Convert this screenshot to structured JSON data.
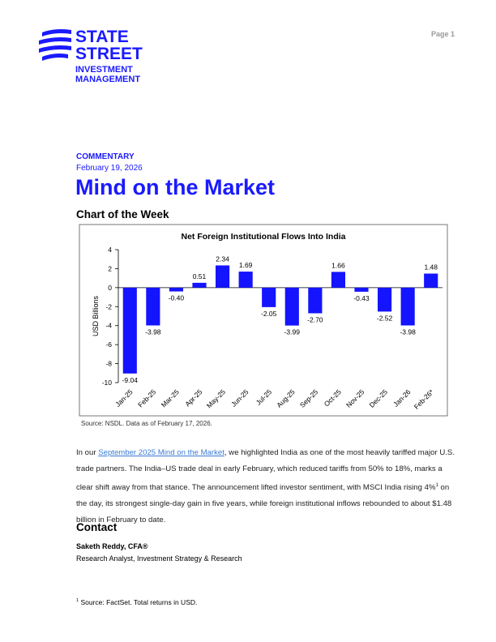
{
  "page_label": "Page 1",
  "logo": {
    "line1": "STATE",
    "line2": "STREET",
    "line3": "INVESTMENT",
    "line4": "MANAGEMENT"
  },
  "header": {
    "kicker": "COMMENTARY",
    "date": "February 19, 2026",
    "title": "Mind on the Market",
    "section": "Chart of the Week"
  },
  "chart_data": {
    "type": "bar",
    "title": "Net Foreign Institutional Flows Into India",
    "y_label": "USD Billions",
    "categories": [
      "Jan-25",
      "Feb-25",
      "Mar-25",
      "Apr-25",
      "May-25",
      "Jun-25",
      "Jul-25",
      "Aug-25",
      "Sep-25",
      "Oct-25",
      "Nov-25",
      "Dec-25",
      "Jan-26",
      "Feb-26*"
    ],
    "values": [
      -9.04,
      -3.98,
      -0.4,
      0.51,
      2.34,
      1.69,
      -2.05,
      -3.99,
      -2.7,
      1.66,
      -0.43,
      -2.52,
      -3.98,
      1.48
    ],
    "value_labels": [
      "-9.04",
      "-3.98",
      "-0.40",
      "0.51",
      "2.34",
      "1.69",
      "-2.05",
      "-3.99",
      "-2.70",
      "1.66",
      "-0.43",
      "-2.52",
      "-3.98",
      "1.48"
    ],
    "color": "#1414ff",
    "ylim": [
      -10,
      4
    ],
    "yticks": [
      -10,
      -8,
      -6,
      -4,
      -2,
      0,
      2,
      4
    ],
    "grid": false,
    "source": "Source: NSDL. Data as of February 17, 2026."
  },
  "paragraph": {
    "before": "In our ",
    "link": "September 2025 Mind on the Market",
    "middle": ", we highlighted India as one of the most heavily tariffed major U.S. trade partners. The India–US trade deal in early February, which reduced tariffs from 50% to 18%, marks a clear shift away from that stance. The announcement lifted investor sentiment, with MSCI India rising 4%",
    "sup": "1",
    "after": " on the day, its strongest single-day gain in five years, while foreign institutional inflows rebounded to about $1.48 billion in February to date."
  },
  "contact": {
    "heading": "Contact",
    "name": "Saketh Reddy, CFA®",
    "role": "Research Analyst, Investment Strategy & Research"
  },
  "footnote": {
    "marker": "1",
    "text": "Source: FactSet. Total returns in USD."
  }
}
